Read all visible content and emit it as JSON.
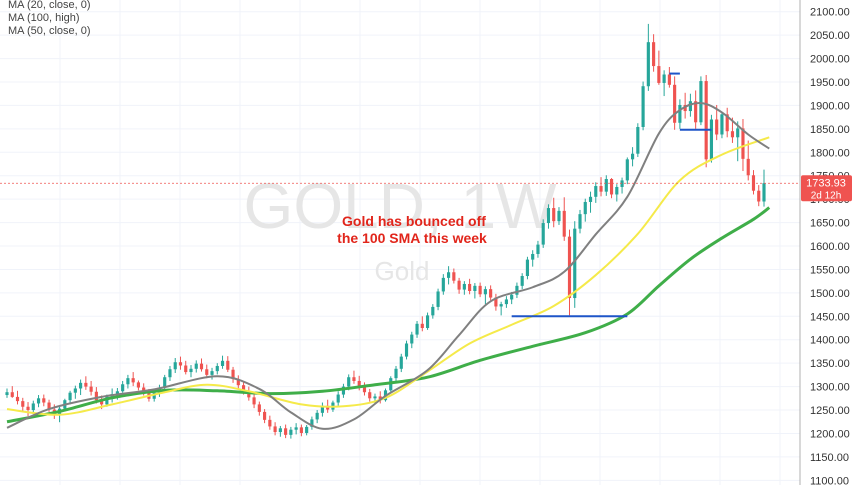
{
  "legend": [
    "MA (20, close, 0)",
    "MA (100, high)",
    "MA (50, close, 0)"
  ],
  "watermark": {
    "symbol": "GOLD, 1W",
    "name": "Gold"
  },
  "annotation": [
    "Gold has bounced off",
    "the 100 SMA this week"
  ],
  "price_label": {
    "price": "1733.93",
    "countdown": "2d 12h"
  },
  "colors": {
    "up": "#26a69a",
    "down": "#ef5350",
    "ma20": "#808080",
    "ma50": "#f5ea4a",
    "ma100": "#3fae49",
    "support_line": "#1e55c8",
    "price_label_bg": "#ef5350",
    "annotation": "#e1251b"
  },
  "chart_data": {
    "type": "candlestick",
    "y_ticks": [
      2100,
      2050,
      2000,
      1950,
      1900,
      1850,
      1800,
      1750,
      1700,
      1650,
      1600,
      1550,
      1500,
      1450,
      1400,
      1350,
      1300,
      1250,
      1200,
      1150,
      1100
    ],
    "ylim": [
      1090,
      2125
    ],
    "grid": true,
    "legend_position": "top-left",
    "candles": [
      [
        1282,
        1296,
        1276,
        1288
      ],
      [
        1288,
        1301,
        1276,
        1278
      ],
      [
        1278,
        1291,
        1262,
        1269
      ],
      [
        1269,
        1276,
        1248,
        1257
      ],
      [
        1257,
        1267,
        1237,
        1250
      ],
      [
        1250,
        1270,
        1242,
        1264
      ],
      [
        1264,
        1282,
        1256,
        1275
      ],
      [
        1275,
        1283,
        1258,
        1266
      ],
      [
        1266,
        1272,
        1246,
        1251
      ],
      [
        1251,
        1262,
        1231,
        1240
      ],
      [
        1240,
        1257,
        1224,
        1253
      ],
      [
        1253,
        1274,
        1248,
        1271
      ],
      [
        1271,
        1291,
        1262,
        1287
      ],
      [
        1287,
        1302,
        1274,
        1296
      ],
      [
        1296,
        1315,
        1282,
        1308
      ],
      [
        1308,
        1322,
        1293,
        1300
      ],
      [
        1300,
        1312,
        1281,
        1289
      ],
      [
        1289,
        1299,
        1264,
        1271
      ],
      [
        1271,
        1281,
        1252,
        1262
      ],
      [
        1262,
        1283,
        1257,
        1279
      ],
      [
        1279,
        1296,
        1266,
        1284
      ],
      [
        1284,
        1297,
        1272,
        1290
      ],
      [
        1290,
        1312,
        1287,
        1305
      ],
      [
        1305,
        1325,
        1296,
        1318
      ],
      [
        1318,
        1331,
        1301,
        1309
      ],
      [
        1309,
        1313,
        1292,
        1298
      ],
      [
        1298,
        1307,
        1281,
        1288
      ],
      [
        1288,
        1295,
        1268,
        1274
      ],
      [
        1274,
        1291,
        1268,
        1287
      ],
      [
        1287,
        1304,
        1278,
        1298
      ],
      [
        1298,
        1325,
        1293,
        1320
      ],
      [
        1320,
        1344,
        1312,
        1337
      ],
      [
        1337,
        1361,
        1329,
        1352
      ],
      [
        1352,
        1364,
        1336,
        1345
      ],
      [
        1345,
        1355,
        1326,
        1331
      ],
      [
        1331,
        1346,
        1320,
        1338
      ],
      [
        1338,
        1356,
        1330,
        1349
      ],
      [
        1349,
        1360,
        1332,
        1337
      ],
      [
        1337,
        1347,
        1318,
        1325
      ],
      [
        1325,
        1340,
        1315,
        1333
      ],
      [
        1333,
        1350,
        1326,
        1344
      ],
      [
        1344,
        1366,
        1338,
        1355
      ],
      [
        1355,
        1365,
        1331,
        1336
      ],
      [
        1336,
        1342,
        1308,
        1316
      ],
      [
        1316,
        1324,
        1296,
        1303
      ],
      [
        1303,
        1311,
        1283,
        1289
      ],
      [
        1289,
        1300,
        1270,
        1277
      ],
      [
        1277,
        1285,
        1254,
        1262
      ],
      [
        1262,
        1268,
        1238,
        1246
      ],
      [
        1246,
        1252,
        1222,
        1229
      ],
      [
        1229,
        1238,
        1208,
        1215
      ],
      [
        1215,
        1224,
        1196,
        1203
      ],
      [
        1203,
        1216,
        1193,
        1211
      ],
      [
        1211,
        1219,
        1190,
        1197
      ],
      [
        1197,
        1214,
        1189,
        1208
      ],
      [
        1208,
        1222,
        1198,
        1213
      ],
      [
        1213,
        1219,
        1194,
        1201
      ],
      [
        1201,
        1218,
        1196,
        1214
      ],
      [
        1214,
        1236,
        1208,
        1230
      ],
      [
        1230,
        1250,
        1222,
        1244
      ],
      [
        1244,
        1266,
        1236,
        1259
      ],
      [
        1259,
        1272,
        1244,
        1251
      ],
      [
        1251,
        1270,
        1246,
        1266
      ],
      [
        1266,
        1290,
        1259,
        1283
      ],
      [
        1283,
        1306,
        1276,
        1300
      ],
      [
        1300,
        1326,
        1292,
        1320
      ],
      [
        1320,
        1334,
        1306,
        1312
      ],
      [
        1312,
        1323,
        1292,
        1299
      ],
      [
        1299,
        1309,
        1281,
        1288
      ],
      [
        1288,
        1295,
        1268,
        1275
      ],
      [
        1275,
        1285,
        1262,
        1279
      ],
      [
        1279,
        1290,
        1264,
        1271
      ],
      [
        1271,
        1296,
        1268,
        1292
      ],
      [
        1292,
        1322,
        1289,
        1318
      ],
      [
        1318,
        1344,
        1311,
        1338
      ],
      [
        1338,
        1370,
        1331,
        1364
      ],
      [
        1364,
        1398,
        1358,
        1392
      ],
      [
        1392,
        1417,
        1382,
        1411
      ],
      [
        1411,
        1440,
        1404,
        1434
      ],
      [
        1434,
        1450,
        1418,
        1425
      ],
      [
        1425,
        1458,
        1421,
        1452
      ],
      [
        1452,
        1476,
        1445,
        1470
      ],
      [
        1470,
        1509,
        1463,
        1503
      ],
      [
        1503,
        1540,
        1496,
        1532
      ],
      [
        1532,
        1557,
        1518,
        1544
      ],
      [
        1544,
        1552,
        1520,
        1526
      ],
      [
        1526,
        1532,
        1498,
        1507
      ],
      [
        1507,
        1525,
        1496,
        1519
      ],
      [
        1519,
        1530,
        1497,
        1504
      ],
      [
        1504,
        1521,
        1488,
        1515
      ],
      [
        1515,
        1522,
        1491,
        1497
      ],
      [
        1497,
        1514,
        1476,
        1508
      ],
      [
        1508,
        1516,
        1484,
        1490
      ],
      [
        1490,
        1498,
        1462,
        1471
      ],
      [
        1471,
        1481,
        1452,
        1476
      ],
      [
        1476,
        1493,
        1468,
        1486
      ],
      [
        1486,
        1502,
        1476,
        1496
      ],
      [
        1496,
        1522,
        1489,
        1515
      ],
      [
        1515,
        1542,
        1508,
        1536
      ],
      [
        1536,
        1577,
        1529,
        1571
      ],
      [
        1571,
        1591,
        1556,
        1583
      ],
      [
        1583,
        1611,
        1575,
        1603
      ],
      [
        1603,
        1657,
        1596,
        1649
      ],
      [
        1649,
        1689,
        1637,
        1681
      ],
      [
        1681,
        1703,
        1640,
        1653
      ],
      [
        1653,
        1683,
        1645,
        1675
      ],
      [
        1675,
        1704,
        1611,
        1620
      ],
      [
        1620,
        1635,
        1452,
        1489
      ],
      [
        1489,
        1653,
        1468,
        1637
      ],
      [
        1637,
        1677,
        1627,
        1668
      ],
      [
        1668,
        1701,
        1652,
        1694
      ],
      [
        1694,
        1716,
        1671,
        1705
      ],
      [
        1705,
        1736,
        1692,
        1728
      ],
      [
        1728,
        1747,
        1706,
        1716
      ],
      [
        1716,
        1751,
        1707,
        1743
      ],
      [
        1743,
        1745,
        1702,
        1710
      ],
      [
        1710,
        1732,
        1695,
        1726
      ],
      [
        1726,
        1746,
        1712,
        1740
      ],
      [
        1740,
        1789,
        1732,
        1785
      ],
      [
        1785,
        1811,
        1770,
        1797
      ],
      [
        1797,
        1862,
        1790,
        1854
      ],
      [
        1854,
        1951,
        1847,
        1941
      ],
      [
        1941,
        2074,
        1931,
        2035
      ],
      [
        2035,
        2052,
        1972,
        1984
      ],
      [
        1984,
        2017,
        1944,
        1948
      ],
      [
        1948,
        1975,
        1920,
        1966
      ],
      [
        1966,
        1982,
        1938,
        1944
      ],
      [
        1944,
        1962,
        1848,
        1863
      ],
      [
        1863,
        1913,
        1850,
        1901
      ],
      [
        1901,
        1927,
        1872,
        1888
      ],
      [
        1888,
        1925,
        1876,
        1909
      ],
      [
        1909,
        1932,
        1850,
        1864
      ],
      [
        1864,
        1962,
        1858,
        1952
      ],
      [
        1952,
        1965,
        1768,
        1785
      ],
      [
        1785,
        1880,
        1778,
        1870
      ],
      [
        1870,
        1901,
        1826,
        1838
      ],
      [
        1838,
        1886,
        1830,
        1881
      ],
      [
        1881,
        1895,
        1832,
        1845
      ],
      [
        1845,
        1874,
        1820,
        1832
      ],
      [
        1832,
        1866,
        1781,
        1851
      ],
      [
        1851,
        1871,
        1760,
        1786
      ],
      [
        1786,
        1825,
        1740,
        1751
      ],
      [
        1751,
        1762,
        1710,
        1718
      ],
      [
        1718,
        1730,
        1685,
        1695
      ],
      [
        1695,
        1763,
        1684,
        1734
      ]
    ],
    "ma20": [
      [
        0,
        1212
      ],
      [
        8,
        1252
      ],
      [
        18,
        1278
      ],
      [
        28,
        1294
      ],
      [
        40,
        1322
      ],
      [
        48,
        1295
      ],
      [
        54,
        1245
      ],
      [
        60,
        1210
      ],
      [
        66,
        1230
      ],
      [
        72,
        1280
      ],
      [
        80,
        1335
      ],
      [
        86,
        1410
      ],
      [
        92,
        1482
      ],
      [
        100,
        1512
      ],
      [
        106,
        1545
      ],
      [
        112,
        1625
      ],
      [
        118,
        1705
      ],
      [
        124,
        1840
      ],
      [
        128,
        1890
      ],
      [
        132,
        1905
      ],
      [
        136,
        1885
      ],
      [
        141,
        1838
      ],
      [
        145,
        1808
      ]
    ],
    "ma50": [
      [
        0,
        1252
      ],
      [
        10,
        1240
      ],
      [
        20,
        1262
      ],
      [
        30,
        1288
      ],
      [
        38,
        1304
      ],
      [
        46,
        1290
      ],
      [
        56,
        1262
      ],
      [
        64,
        1258
      ],
      [
        72,
        1276
      ],
      [
        80,
        1332
      ],
      [
        88,
        1392
      ],
      [
        96,
        1432
      ],
      [
        104,
        1472
      ],
      [
        112,
        1538
      ],
      [
        120,
        1626
      ],
      [
        128,
        1740
      ],
      [
        136,
        1795
      ],
      [
        145,
        1832
      ]
    ],
    "ma100": [
      [
        0,
        1225
      ],
      [
        10,
        1247
      ],
      [
        20,
        1276
      ],
      [
        30,
        1292
      ],
      [
        40,
        1291
      ],
      [
        50,
        1285
      ],
      [
        60,
        1290
      ],
      [
        70,
        1304
      ],
      [
        80,
        1320
      ],
      [
        90,
        1356
      ],
      [
        100,
        1386
      ],
      [
        110,
        1415
      ],
      [
        118,
        1455
      ],
      [
        124,
        1515
      ],
      [
        130,
        1572
      ],
      [
        136,
        1617
      ],
      [
        142,
        1657
      ],
      [
        145,
        1682
      ]
    ],
    "support_lines": [
      {
        "from": 96,
        "to": 118,
        "value": 1450
      },
      {
        "from": 126,
        "to": 128,
        "value": 1968
      },
      {
        "from": 128,
        "to": 134,
        "value": 1848
      }
    ]
  }
}
